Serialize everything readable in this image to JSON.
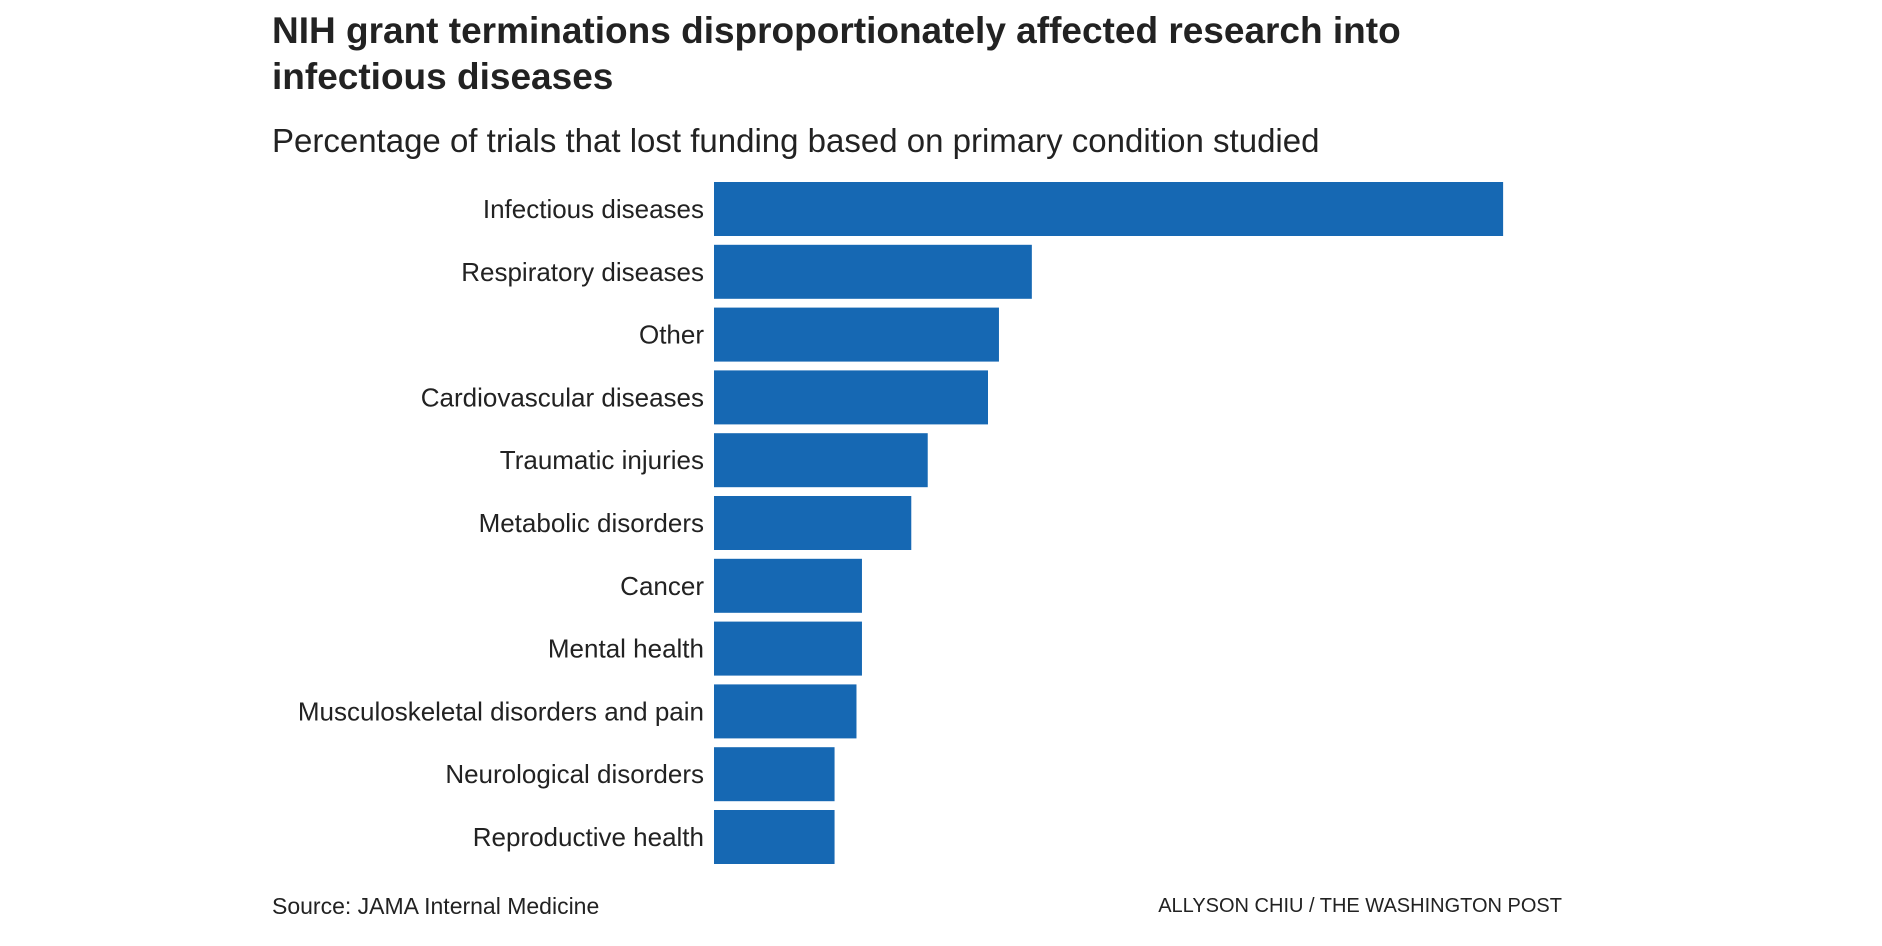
{
  "chart_data": {
    "type": "bar",
    "orientation": "horizontal",
    "title": "NIH grant terminations disproportionately affected research into infectious diseases",
    "subtitle": "Percentage of trials that lost funding based on primary condition studied",
    "categories": [
      "Infectious diseases",
      "Respiratory diseases",
      "Other",
      "Cardiovascular diseases",
      "Traumatic injuries",
      "Metabolic disorders",
      "Cancer",
      "Mental health",
      "Musculoskeletal disorders and pain",
      "Neurological disorders",
      "Reproductive health"
    ],
    "values": [
      14.4,
      5.8,
      5.2,
      5.0,
      3.9,
      3.6,
      2.7,
      2.7,
      2.6,
      2.2,
      2.2
    ],
    "xlim": [
      0,
      15
    ],
    "xlabel": "",
    "ylabel": "",
    "grid": false,
    "bar_color": "#1668b3",
    "source": "Source: JAMA Internal Medicine",
    "credit": "ALLYSON CHIU / THE WASHINGTON POST"
  }
}
